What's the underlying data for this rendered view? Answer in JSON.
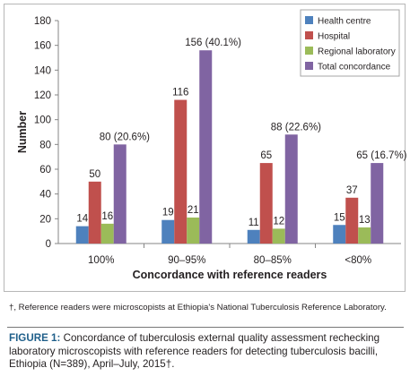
{
  "chart_data": {
    "type": "bar",
    "categories": [
      "100%",
      "90–95%",
      "80–85%",
      "<80%"
    ],
    "series": [
      {
        "name": "Health centre",
        "color": "#4e81bd",
        "values": [
          14,
          19,
          11,
          15
        ],
        "labels": [
          "14",
          "19",
          "11",
          "15"
        ]
      },
      {
        "name": "Hospital",
        "color": "#c0504d",
        "values": [
          50,
          116,
          65,
          37
        ],
        "labels": [
          "50",
          "116",
          "65",
          "37"
        ]
      },
      {
        "name": "Regional laboratory",
        "color": "#9bbb59",
        "values": [
          16,
          21,
          12,
          13
        ],
        "labels": [
          "16",
          "21",
          "12",
          "13"
        ]
      },
      {
        "name": "Total concordance",
        "color": "#8064a2",
        "values": [
          80,
          156,
          88,
          65
        ],
        "labels": [
          "80 (20.6%)",
          "156 (40.1%)",
          "88 (22.6%)",
          "65 (16.7%)"
        ]
      }
    ],
    "xlabel": "Concordance with reference readers",
    "ylabel": "Number",
    "ylim": [
      0,
      180
    ],
    "yticks": [
      "0",
      "20",
      "40",
      "60",
      "80",
      "100",
      "120",
      "140",
      "160",
      "180"
    ],
    "grid": false,
    "legend_position": "top-right"
  },
  "footnote": "†, Reference readers were microscopists at Ethiopia's National Tuberculosis Reference Laboratory.",
  "caption": {
    "label": "FIGURE 1:",
    "text": " Concordance of tuberculosis external quality assessment rechecking laboratory microscopists with reference readers for detecting tuberculosis bacilli, Ethiopia (N=389), April–July, 2015†."
  }
}
